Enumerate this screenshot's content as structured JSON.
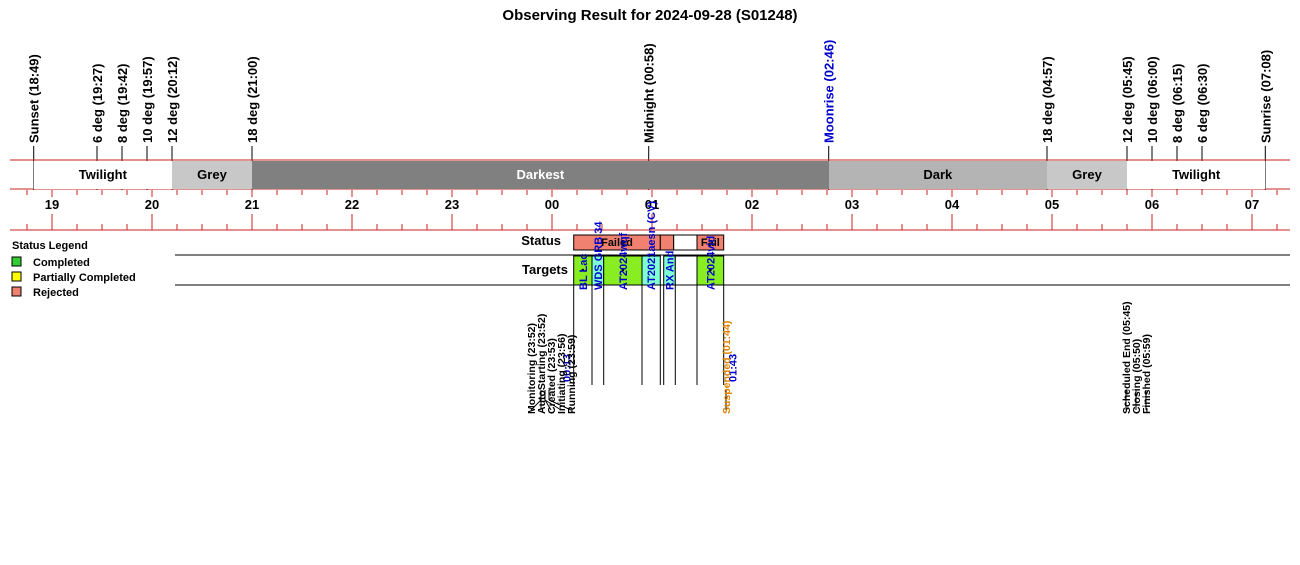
{
  "title": "Observing Result for 2024-09-28 (S01248)",
  "markers": [
    {
      "label": "Sunset (18:49)",
      "t": -5.183,
      "color": "#000000"
    },
    {
      "label": "6 deg (19:27)",
      "t": -4.55,
      "color": "#000000"
    },
    {
      "label": "8 deg (19:42)",
      "t": -4.3,
      "color": "#000000"
    },
    {
      "label": "10 deg (19:57)",
      "t": -4.05,
      "color": "#000000"
    },
    {
      "label": "12 deg (20:12)",
      "t": -3.8,
      "color": "#000000"
    },
    {
      "label": "18 deg (21:00)",
      "t": -3.0,
      "color": "#000000"
    },
    {
      "label": "Midnight (00:58)",
      "t": 0.967,
      "color": "#000000"
    },
    {
      "label": "Moonrise (02:46)",
      "t": 2.767,
      "color": "#0000cc"
    },
    {
      "label": "18 deg (04:57)",
      "t": 4.95,
      "color": "#000000"
    },
    {
      "label": "12 deg (05:45)",
      "t": 5.75,
      "color": "#000000"
    },
    {
      "label": "10 deg (06:00)",
      "t": 6.0,
      "color": "#000000"
    },
    {
      "label": "8 deg (06:15)",
      "t": 6.25,
      "color": "#000000"
    },
    {
      "label": "6 deg (06:30)",
      "t": 6.5,
      "color": "#000000"
    },
    {
      "label": "Sunrise (07:08)",
      "t": 7.133,
      "color": "#000000"
    }
  ],
  "bands": [
    {
      "label": "Twilight",
      "t0": -5.183,
      "t1": -3.8,
      "color": "#ffffff",
      "text_color": "#000000"
    },
    {
      "label": "Grey",
      "t0": -3.8,
      "t1": -3.0,
      "color": "#c8c8c8",
      "text_color": "#000000"
    },
    {
      "label": "Darkest",
      "t0": -3.0,
      "t1": 2.767,
      "color": "#808080",
      "text_color": "#ffffff"
    },
    {
      "label": "Dark",
      "t0": 2.767,
      "t1": 4.95,
      "color": "#b4b4b4",
      "text_color": "#000000"
    },
    {
      "label": "Grey",
      "t0": 4.95,
      "t1": 5.75,
      "color": "#c8c8c8",
      "text_color": "#000000"
    },
    {
      "label": "Twilight",
      "t0": 5.75,
      "t1": 7.133,
      "color": "#ffffff",
      "text_color": "#000000"
    }
  ],
  "hours": [
    {
      "label": "19",
      "t": -5
    },
    {
      "label": "20",
      "t": -4
    },
    {
      "label": "21",
      "t": -3
    },
    {
      "label": "22",
      "t": -2
    },
    {
      "label": "23",
      "t": -1
    },
    {
      "label": "00",
      "t": 0
    },
    {
      "label": "01",
      "t": 1
    },
    {
      "label": "02",
      "t": 2
    },
    {
      "label": "03",
      "t": 3
    },
    {
      "label": "04",
      "t": 4
    },
    {
      "label": "05",
      "t": 5
    },
    {
      "label": "06",
      "t": 6
    },
    {
      "label": "07",
      "t": 7
    }
  ],
  "legend": {
    "title": "Status Legend",
    "items": [
      {
        "label": "Completed",
        "color": "#33cc33"
      },
      {
        "label": "Partially Completed",
        "color": "#ffff00"
      },
      {
        "label": "Rejected",
        "color": "#f08070"
      }
    ]
  },
  "rows": {
    "status_label": "Status",
    "targets_label": "Targets"
  },
  "status_segments": [
    {
      "label": "Failed",
      "t0": 0.217,
      "t1": 1.083,
      "color": "#f08070"
    },
    {
      "label": "",
      "t0": 1.083,
      "t1": 1.217,
      "color": "#f08070"
    },
    {
      "label": "",
      "t0": 1.217,
      "t1": 1.45,
      "color": "#ffffff"
    },
    {
      "label": "Fail",
      "t0": 1.45,
      "t1": 1.717,
      "color": "#f08070"
    }
  ],
  "target_segments": [
    {
      "name": "BL Lac",
      "t0": 0.217,
      "t1": 0.4,
      "color": "#88ee22",
      "dot": true
    },
    {
      "name": "WDS GRB 34",
      "t0": 0.4,
      "t1": 0.517,
      "color": "#7fffd4",
      "dot": false
    },
    {
      "name": "AT2024wqf",
      "t0": 0.517,
      "t1": 0.9,
      "color": "#88ee22",
      "dot": true
    },
    {
      "name": "AT2021aesn (CV)",
      "t0": 0.9,
      "t1": 1.083,
      "color": "#7fffd4",
      "dot": false
    },
    {
      "name": "RX And",
      "t0": 1.117,
      "t1": 1.233,
      "color": "#7fffd4",
      "dot": false
    },
    {
      "name": "",
      "t0": 1.233,
      "t1": 1.45,
      "color": "#ffffff",
      "dot": false
    },
    {
      "name": "AT2024vid",
      "t0": 1.45,
      "t1": 1.717,
      "color": "#88ee22",
      "dot": true
    }
  ],
  "start_time": "00:13",
  "end_time": "01:43",
  "events": [
    {
      "label": "Monitoring (23:52)",
      "color": "#000000"
    },
    {
      "label": "AutoStarting (23:52)",
      "color": "#000000"
    },
    {
      "label": "Created (23:53)",
      "color": "#000000"
    },
    {
      "label": "Initiating (23:56)",
      "color": "#000000"
    },
    {
      "label": "Running (23:59)",
      "color": "#000000"
    },
    {
      "label": "Suspended (01:44)",
      "color": "#e08000"
    },
    {
      "label": "Scheduled End (05:45)",
      "color": "#000000"
    },
    {
      "label": "Closing (05:50)",
      "color": "#000000"
    },
    {
      "label": "Finished (05:59)",
      "color": "#000000"
    }
  ]
}
